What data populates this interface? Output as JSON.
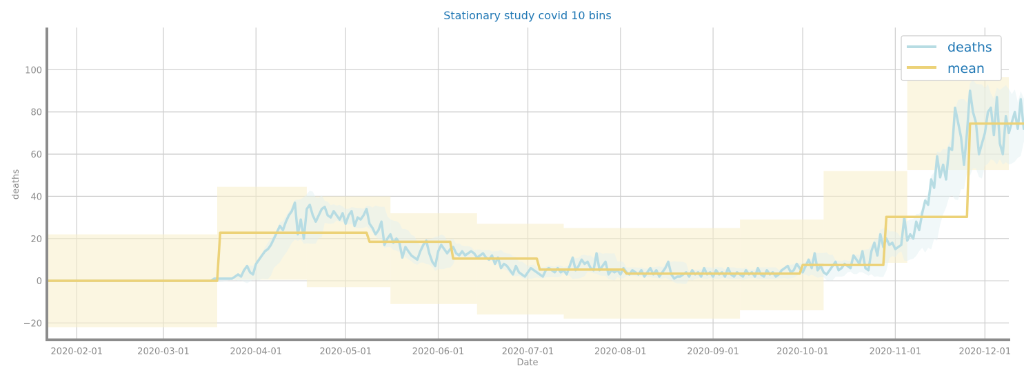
{
  "chart_data": {
    "type": "line",
    "title": "Stationary study covid 10 bins",
    "xlabel": "Date",
    "ylabel": "deaths",
    "ylim": [
      -28,
      120
    ],
    "yticks": [
      -20,
      0,
      20,
      40,
      60,
      80,
      100
    ],
    "ytick_labels": [
      "−20",
      "0",
      "20",
      "40",
      "60",
      "80",
      "100"
    ],
    "xlim": [
      "2020-01-22",
      "2020-12-09"
    ],
    "xticks": [
      "2020-02-01",
      "2020-03-01",
      "2020-04-01",
      "2020-05-01",
      "2020-06-01",
      "2020-07-01",
      "2020-08-01",
      "2020-09-01",
      "2020-10-01",
      "2020-11-01",
      "2020-12-01"
    ],
    "grid": true,
    "legend": {
      "placement": "top-right",
      "entries": [
        "deaths",
        "mean"
      ]
    },
    "colors": {
      "deaths": "#b7dce3",
      "deaths_band": "#dff0f2",
      "mean": "#ecd278",
      "mean_band": "#f8eec8"
    },
    "series": [
      {
        "name": "deaths",
        "start": "2020-01-22",
        "values": [
          0,
          0,
          0,
          0,
          0,
          0,
          0,
          0,
          0,
          0,
          0,
          0,
          0,
          0,
          0,
          0,
          0,
          0,
          0,
          0,
          0,
          0,
          0,
          0,
          0,
          0,
          0,
          0,
          0,
          0,
          0,
          0,
          0,
          0,
          0,
          0,
          0,
          0,
          0,
          0,
          0,
          0,
          0,
          0,
          0,
          0,
          0,
          0,
          0,
          0,
          0,
          0,
          0,
          0,
          0,
          0,
          1,
          1,
          1,
          1,
          1,
          1,
          1,
          2,
          3,
          2,
          5,
          7,
          4,
          3,
          8,
          10,
          12,
          14,
          15,
          17,
          20,
          23,
          26,
          24,
          28,
          31,
          33,
          37,
          22,
          29,
          20,
          34,
          36,
          31,
          28,
          31,
          34,
          35,
          31,
          30,
          33,
          31,
          29,
          32,
          27,
          31,
          33,
          26,
          30,
          29,
          31,
          34,
          27,
          25,
          22,
          24,
          28,
          17,
          20,
          22,
          18,
          20,
          18,
          11,
          16,
          14,
          12,
          11,
          10,
          14,
          17,
          19,
          13,
          9,
          7,
          14,
          17,
          15,
          13,
          15,
          16,
          13,
          12,
          14,
          12,
          13,
          14,
          13,
          11,
          12,
          13,
          11,
          10,
          12,
          8,
          11,
          6,
          8,
          7,
          5,
          3,
          7,
          4,
          3,
          2,
          4,
          6,
          5,
          4,
          3,
          2,
          5,
          6,
          5,
          4,
          6,
          4,
          5,
          3,
          7,
          11,
          5,
          7,
          10,
          8,
          9,
          6,
          5,
          13,
          5,
          7,
          9,
          3,
          5,
          4,
          5,
          3,
          6,
          4,
          3,
          5,
          4,
          3,
          5,
          2,
          4,
          6,
          3,
          5,
          2,
          4,
          6,
          9,
          3,
          1,
          2,
          2,
          3,
          4,
          2,
          5,
          3,
          4,
          2,
          6,
          3,
          4,
          2,
          5,
          3,
          4,
          2,
          6,
          3,
          2,
          4,
          3,
          2,
          5,
          3,
          4,
          2,
          6,
          3,
          2,
          5,
          3,
          4,
          2,
          3,
          5,
          6,
          7,
          4,
          5,
          8,
          6,
          4,
          7,
          10,
          6,
          13,
          5,
          7,
          4,
          3,
          5,
          7,
          9,
          5,
          6,
          8,
          7,
          6,
          12,
          10,
          8,
          14,
          6,
          5,
          14,
          18,
          12,
          22,
          16,
          20,
          17,
          18,
          15,
          16,
          17,
          30,
          19,
          22,
          20,
          28,
          24,
          32,
          38,
          36,
          48,
          44,
          59,
          49,
          55,
          48,
          63,
          62,
          82,
          75,
          68,
          55,
          70,
          90,
          80,
          75,
          60,
          65,
          70,
          80,
          82,
          69,
          87,
          65,
          60,
          78,
          70,
          75,
          80,
          72,
          86,
          72,
          82,
          70
        ]
      },
      {
        "name": "mean",
        "start": "2020-01-22",
        "values": [
          0,
          0,
          0,
          0,
          0,
          0,
          0,
          0,
          0,
          0,
          0,
          0,
          0,
          0,
          0,
          0,
          0,
          0,
          0,
          0,
          0,
          0,
          0,
          0,
          0,
          0,
          0,
          0,
          0,
          0,
          0,
          0,
          0,
          0,
          0,
          0,
          0,
          0,
          0,
          0,
          0,
          0,
          0,
          0,
          0,
          0,
          0,
          0,
          0,
          0,
          0,
          0,
          0,
          0,
          0,
          0,
          0,
          0,
          22.8,
          22.8,
          22.8,
          22.8,
          22.8,
          22.8,
          22.8,
          22.8,
          22.8,
          22.8,
          22.8,
          22.8,
          22.8,
          22.8,
          22.8,
          22.8,
          22.8,
          22.8,
          22.8,
          22.8,
          22.8,
          22.8,
          22.8,
          22.8,
          22.8,
          22.8,
          22.8,
          22.8,
          22.8,
          22.8,
          22.8,
          22.8,
          22.8,
          22.8,
          22.8,
          22.8,
          22.8,
          22.8,
          22.8,
          22.8,
          22.8,
          22.8,
          22.8,
          22.8,
          22.8,
          22.8,
          22.8,
          22.8,
          22.8,
          22.8,
          18.5,
          18.5,
          18.5,
          18.5,
          18.5,
          18.5,
          18.5,
          18.5,
          18.5,
          18.5,
          18.5,
          18.5,
          18.5,
          18.5,
          18.5,
          18.5,
          18.5,
          18.5,
          18.5,
          18.5,
          18.5,
          18.5,
          18.5,
          18.5,
          18.5,
          18.5,
          18.5,
          18.5,
          10.5,
          10.5,
          10.5,
          10.5,
          10.5,
          10.5,
          10.5,
          10.5,
          10.5,
          10.5,
          10.5,
          10.5,
          10.5,
          10.5,
          10.5,
          10.5,
          10.5,
          10.5,
          10.5,
          10.5,
          10.5,
          10.5,
          10.5,
          10.5,
          10.5,
          10.5,
          10.5,
          10.5,
          10.5,
          5.3,
          5.3,
          5.3,
          5.3,
          5.3,
          5.3,
          5.3,
          5.3,
          5.3,
          5.3,
          5.3,
          5.3,
          5.3,
          5.3,
          5.3,
          5.3,
          5.3,
          5.3,
          5.3,
          5.3,
          5.3,
          5.3,
          5.3,
          5.3,
          5.3,
          5.3,
          5.3,
          5.3,
          5.3,
          3.4,
          3.4,
          3.4,
          3.4,
          3.4,
          3.4,
          3.4,
          3.4,
          3.4,
          3.4,
          3.4,
          3.4,
          3.4,
          3.4,
          3.4,
          3.4,
          3.4,
          3.4,
          3.4,
          3.4,
          3.4,
          3.4,
          3.4,
          3.4,
          3.4,
          3.4,
          3.4,
          3.4,
          3.4,
          3.4,
          3.4,
          3.4,
          3.4,
          3.4,
          3.4,
          3.4,
          3.4,
          3.4,
          3.4,
          3.4,
          3.4,
          3.4,
          3.4,
          3.4,
          3.4,
          3.4,
          3.4,
          3.4,
          3.4,
          3.4,
          3.4,
          3.4,
          3.4,
          3.4,
          3.4,
          3.4,
          3.4,
          3.4,
          3.4,
          7.5,
          7.5,
          7.5,
          7.5,
          7.5,
          7.5,
          7.5,
          7.5,
          7.5,
          7.5,
          7.5,
          7.5,
          7.5,
          7.5,
          7.5,
          7.5,
          7.5,
          7.5,
          7.5,
          7.5,
          7.5,
          7.5,
          7.5,
          7.5,
          7.5,
          7.5,
          7.5,
          7.5,
          30.3,
          30.3,
          30.3,
          30.3,
          30.3,
          30.3,
          30.3,
          30.3,
          30.3,
          30.3,
          30.3,
          30.3,
          30.3,
          30.3,
          30.3,
          30.3,
          30.3,
          30.3,
          30.3,
          30.3,
          30.3,
          30.3,
          30.3,
          30.3,
          30.3,
          30.3,
          30.3,
          30.3,
          74.5,
          74.5,
          74.5,
          74.5,
          74.5,
          74.5,
          74.5,
          74.5,
          74.5,
          74.5,
          74.5,
          74.5,
          74.5,
          74.5,
          74.5,
          74.5,
          74.5,
          74.5,
          74.5,
          74.5,
          74.5,
          74.5,
          74.5,
          74.5,
          74.5,
          74.5,
          74.5,
          74.5,
          74.5,
          74.5,
          74.5,
          74.5,
          74.5
        ]
      }
    ],
    "mean_band_bins": [
      {
        "from": "2020-01-22",
        "to": "2020-03-19",
        "mean": 0,
        "low": -22,
        "high": 22
      },
      {
        "from": "2020-03-19",
        "to": "2020-04-18",
        "mean": 22.8,
        "low": 0.5,
        "high": 44.5
      },
      {
        "from": "2020-04-18",
        "to": "2020-05-16",
        "mean": 18.5,
        "low": -3,
        "high": 40
      },
      {
        "from": "2020-05-16",
        "to": "2020-06-14",
        "mean": 10.5,
        "low": -11,
        "high": 32
      },
      {
        "from": "2020-06-14",
        "to": "2020-07-13",
        "mean": 5.3,
        "low": -16,
        "high": 27
      },
      {
        "from": "2020-07-13",
        "to": "2020-09-10",
        "mean": 3.4,
        "low": -18,
        "high": 25
      },
      {
        "from": "2020-09-10",
        "to": "2020-10-08",
        "mean": 7.5,
        "low": -14,
        "high": 29
      },
      {
        "from": "2020-10-08",
        "to": "2020-11-05",
        "mean": 30.3,
        "low": 8.5,
        "high": 52
      },
      {
        "from": "2020-11-05",
        "to": "2020-12-09",
        "mean": 74.5,
        "low": 52.5,
        "high": 96.5
      }
    ]
  }
}
